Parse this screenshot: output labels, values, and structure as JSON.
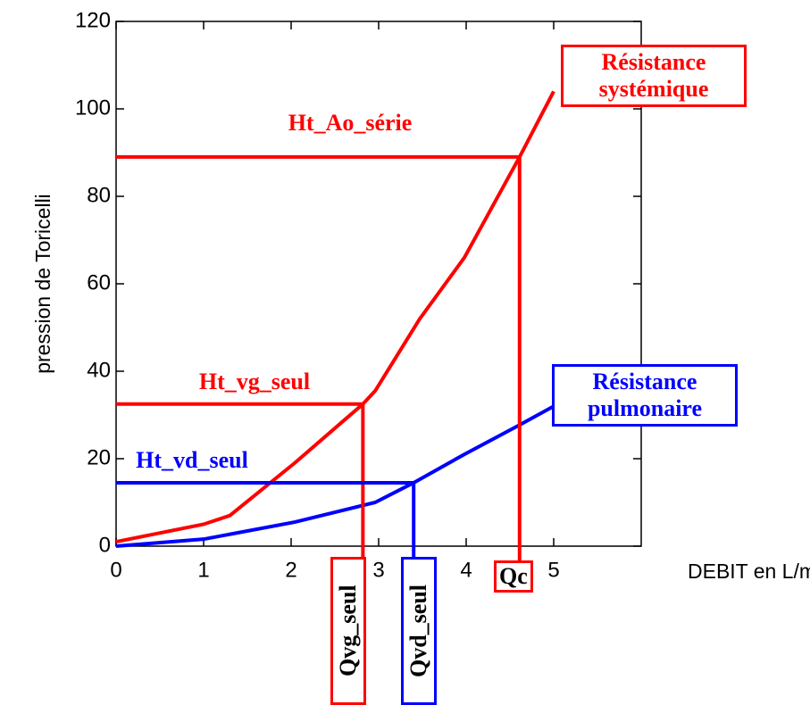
{
  "chart_data": {
    "type": "line",
    "x_label": "DEBIT en L/mn",
    "y_label": "pression de Toricelli",
    "xlim": [
      0,
      6
    ],
    "ylim": [
      0,
      120
    ],
    "xticks": [
      0,
      1,
      2,
      3,
      4,
      5
    ],
    "yticks": [
      0,
      20,
      40,
      60,
      80,
      100,
      120
    ],
    "series": [
      {
        "name": "Résistance systémique",
        "color": "#ff0000",
        "x": [
          0,
          1,
          1.3,
          2.04,
          2.82,
          2.96,
          3.47,
          3.98,
          4.61,
          5
        ],
        "values": [
          1,
          5,
          7,
          19,
          32.5,
          35.5,
          52,
          66,
          89,
          104
        ]
      },
      {
        "name": "Résistance pulmonaire",
        "color": "#0000ff",
        "x": [
          0,
          1,
          2.04,
          2.96,
          3.4,
          3.98,
          4.59,
          5
        ],
        "values": [
          0,
          1.6,
          5.5,
          10,
          14.5,
          21,
          27.5,
          32
        ]
      }
    ],
    "operating_points": [
      {
        "level_label": "Ht_Ao_série",
        "flow_label": "Qc",
        "x": 4.61,
        "y": 89,
        "color": "#ff0000"
      },
      {
        "level_label": "Ht_vg_seul",
        "flow_label": "Qvg_seul",
        "x": 2.82,
        "y": 32.5,
        "color": "#ff0000"
      },
      {
        "level_label": "Ht_vd_seul",
        "flow_label": "Qvd_seul",
        "x": 3.4,
        "y": 14.5,
        "color": "#0000ff"
      }
    ]
  }
}
